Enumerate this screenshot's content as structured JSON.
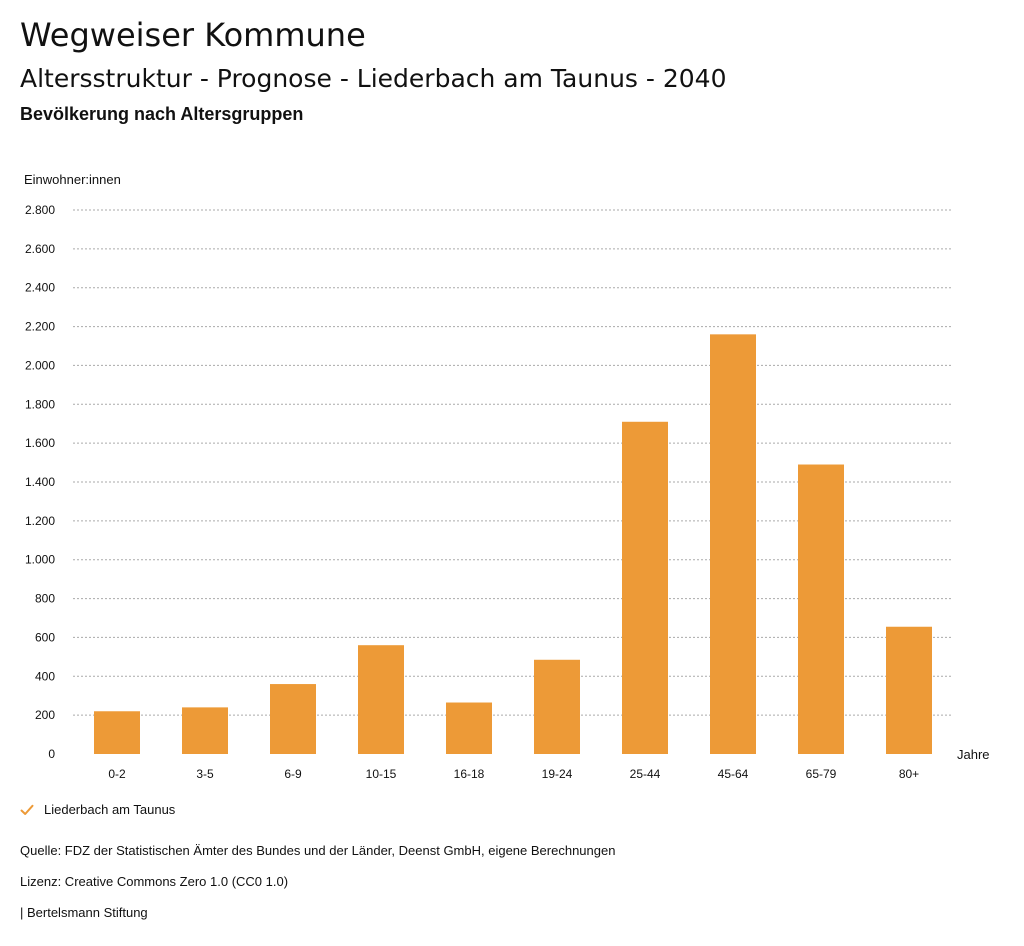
{
  "header": {
    "site_title": "Wegweiser Kommune",
    "title": "Altersstruktur - Prognose - Liederbach am Taunus - 2040",
    "subtitle": "Bevölkerung nach Altersgruppen"
  },
  "chart_data": {
    "type": "bar",
    "ylabel": "Einwohner:innen",
    "xlabel": "Jahre",
    "ylim": [
      0,
      2800
    ],
    "yticks": [
      0,
      200,
      400,
      600,
      800,
      1000,
      1200,
      1400,
      1600,
      1800,
      2000,
      2200,
      2400,
      2600,
      2800
    ],
    "ytick_labels": [
      "0",
      "200",
      "400",
      "600",
      "800",
      "1.000",
      "1.200",
      "1.400",
      "1.600",
      "1.800",
      "2.000",
      "2.200",
      "2.400",
      "2.600",
      "2.800"
    ],
    "categories": [
      "0-2",
      "3-5",
      "6-9",
      "10-15",
      "16-18",
      "19-24",
      "25-44",
      "45-64",
      "65-79",
      "80+"
    ],
    "series": [
      {
        "name": "Liederbach am Taunus",
        "color": "#ED9A37",
        "values": [
          220,
          240,
          360,
          560,
          265,
          485,
          1710,
          2160,
          1490,
          655
        ]
      }
    ],
    "grid": true,
    "legend_position": "bottom-left"
  },
  "legend": {
    "items": [
      {
        "label": "Liederbach am Taunus",
        "icon": "check-icon",
        "color": "#ED9A37"
      }
    ]
  },
  "footer": {
    "source": "Quelle: FDZ der Statistischen Ämter des Bundes und der Länder, Deenst GmbH, eigene Berechnungen",
    "license": "Lizenz: Creative Commons Zero 1.0 (CC0 1.0)",
    "publisher": "| Bertelsmann Stiftung"
  }
}
